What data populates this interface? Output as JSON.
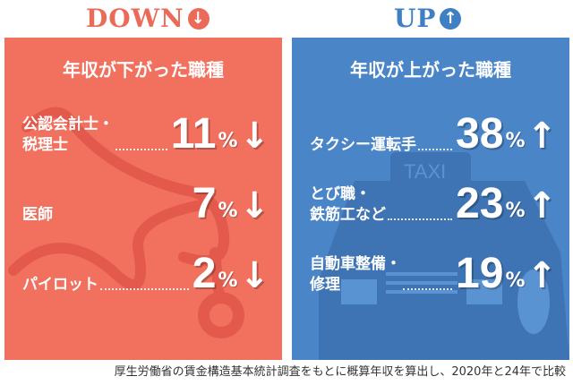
{
  "colors": {
    "down": "#f1705e",
    "up": "#4a85c8",
    "down_dark": "#e0584a",
    "up_dark": "#3f74b4"
  },
  "down": {
    "heading": "DOWN",
    "heading_icon": "arrow-down-circle-icon",
    "subtitle": "年収が下がった職種",
    "items": [
      {
        "label": "公認会計士・\n税理士",
        "value": "11",
        "unit": "%",
        "arrow": "↓"
      },
      {
        "label": "医師",
        "value": "7",
        "unit": "%",
        "arrow": "↓"
      },
      {
        "label": "パイロット",
        "value": "2",
        "unit": "%",
        "arrow": "↓"
      }
    ]
  },
  "up": {
    "heading": "UP",
    "heading_icon": "arrow-up-circle-icon",
    "subtitle": "年収が上がった職種",
    "items": [
      {
        "label": "タクシー運転手",
        "value": "38",
        "unit": "%",
        "arrow": "↑"
      },
      {
        "label": "とび職・\n鉄筋工など",
        "value": "23",
        "unit": "%",
        "arrow": "↑"
      },
      {
        "label": "自動車整備・\n修理",
        "value": "19",
        "unit": "%",
        "arrow": "↑"
      }
    ]
  },
  "taxi_sign": "TAXI",
  "footnote": "厚生労働省の賃金構造基本統計調査をもとに概算年収を算出し、2020年と24年で比較"
}
